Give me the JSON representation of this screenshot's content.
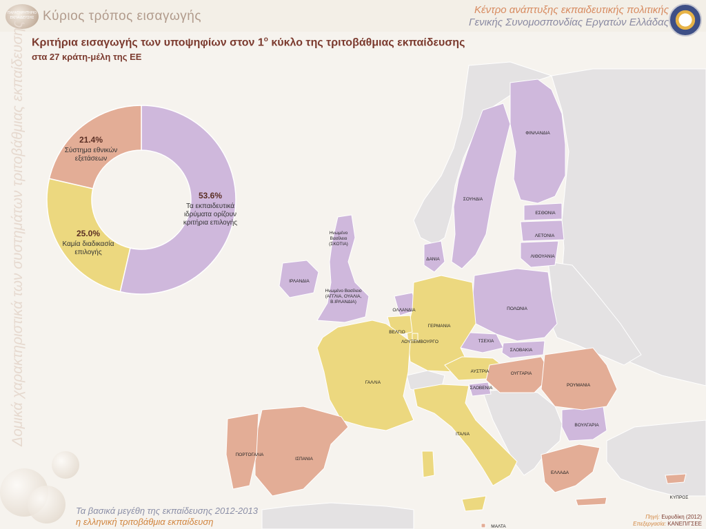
{
  "header": {
    "logo_text": "ΠΑΡΑΤΗΡΗΤΗΡΙΟ ΕΚΠΑΙΔΕΥΣΗΣ",
    "section_title": "Κύριος τρόπος εισαγωγής",
    "org_line1": "Κέντρο ανάπτυξης εκπαιδευτικής πολιτικής",
    "org_line2": "Γενικής Συνομοσπονδίας Εργατών Ελλάδας"
  },
  "vertical_text": "Δομικά χαρακτηριστικά των συστημάτων τριτοβάθμιας εκπαίδευσης",
  "title": {
    "pre": "Κριτήρια εισαγωγής των υποψηφίων στον 1",
    "sup": "ο",
    "post": " κύκλο της τριτοβάθμιας εκπαίδευσης",
    "subtitle": "στα 27 κράτη-μέλη της ΕΕ"
  },
  "colors": {
    "purple": "#cfb8dc",
    "yellow": "#ecd87f",
    "salmon": "#e3ad96",
    "grey": "#e4e2e3",
    "sea": "#f6f3ee",
    "title": "#7b3a2e"
  },
  "chart_data": {
    "type": "pie",
    "donut": true,
    "start": "top",
    "direction": "clockwise",
    "slices": [
      {
        "value": 53.6,
        "pct_label": "53.6%",
        "label": "Τα εκπαιδευτικά ιδρύματα ορίζουν κριτήρια επιλογής",
        "color": "#cfb8dc"
      },
      {
        "value": 25.0,
        "pct_label": "25.0%",
        "label": "Καμία διαδικασία επιλογής",
        "color": "#ecd87f"
      },
      {
        "value": 21.4,
        "pct_label": "21.4%",
        "label": "Σύστημα εθνικών εξετάσεων",
        "color": "#e3ad96"
      }
    ]
  },
  "countries": {
    "finland": "ΦΙΝΛΑΝΔΙΑ",
    "sweden": "ΣΟΥΗΔΙΑ",
    "estonia": "ΕΣΘΟΝΙΑ",
    "latvia": "ΛΕΤΟΝΙΑ",
    "lithuania": "ΛΙΘΟΥΑΝΙΑ",
    "denmark": "ΔΑΝΙΑ",
    "scotland_1": "Ηνωμένο",
    "scotland_2": "Βασίλειο",
    "scotland_3": "(ΣΚΟΤΙΑ)",
    "ireland": "ΙΡΛΑΝΔΙΑ",
    "uk_1": "Ηνωμένο Βασίλειο",
    "uk_2": "(ΑΓΓΛΙΑ, ΟΥΑΛΙΑ,",
    "uk_3": "Β.ΙΡΛΑΝΔΙΑ)",
    "netherlands": "ΟΛΛΑΝΔΙΑ",
    "belgium": "ΒΕΛΓΙΟ",
    "luxembourg": "ΛΟΥΞΕΜΒΟΥΡΓΟ",
    "germany": "ΓΕΡΜΑΝΙΑ",
    "poland": "ΠΟΛΩΝΙΑ",
    "czechia": "ΤΣΕΧΙΑ",
    "slovakia": "ΣΛΟΒΑΚΙΑ",
    "austria": "ΑΥΣΤΡΙΑ",
    "hungary": "ΟΥΓΓΑΡΙΑ",
    "slovenia": "ΣΛΟΒΕΝΙΑ",
    "romania": "ΡΟΥΜΑΝΙΑ",
    "bulgaria": "ΒΟΥΛΓΑΡΙΑ",
    "france": "ΓΑΛΛΙΑ",
    "italy": "ΙΤΑΛΙΑ",
    "portugal": "ΠΟΡΤΟΓΑΛΙΑ",
    "spain": "ΙΣΠΑΝΙΑ",
    "greece": "ΕΛΛΑΔΑ",
    "cyprus": "ΚΥΠΡΟΣ",
    "malta": "ΜΑΛΤΑ"
  },
  "footer": {
    "line1": "Τα βασικά μεγέθη της εκπαίδευσης 2012-2013",
    "line2": "η ελληνική τριτοβάθμια εκπαίδευση"
  },
  "source": {
    "source_key": "Πηγή:",
    "source_val": "Ευρυδίκη (2012)",
    "proc_key": "Επεξεργασία:",
    "proc_val": "ΚΑΝΕΠ/ΓΣΕΕ"
  }
}
